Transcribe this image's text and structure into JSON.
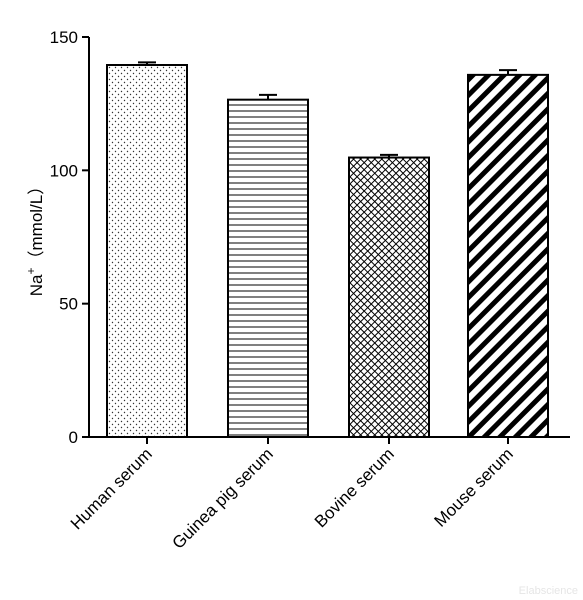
{
  "chart_data": {
    "type": "bar",
    "categories": [
      "Human serum",
      "Guinea pig serum",
      "Bovine serum",
      "Mouse serum"
    ],
    "values": [
      139.5,
      126.5,
      104.8,
      135.8
    ],
    "errors": [
      1.0,
      1.8,
      1.0,
      1.8
    ],
    "patterns": [
      "dots",
      "horizontal-lines",
      "crosshatch",
      "diagonal-stripes"
    ],
    "title": "",
    "xlabel": "",
    "ylabel_main": "Na",
    "ylabel_sup": "+",
    "ylabel_unit": "（mmol/L）",
    "ylim": [
      0,
      150
    ],
    "yticks": [
      0,
      50,
      100,
      150
    ],
    "ytick_labels": [
      "0",
      "50",
      "100",
      "150"
    ],
    "grid": false,
    "legend": "none"
  },
  "watermark": "Elabscience"
}
